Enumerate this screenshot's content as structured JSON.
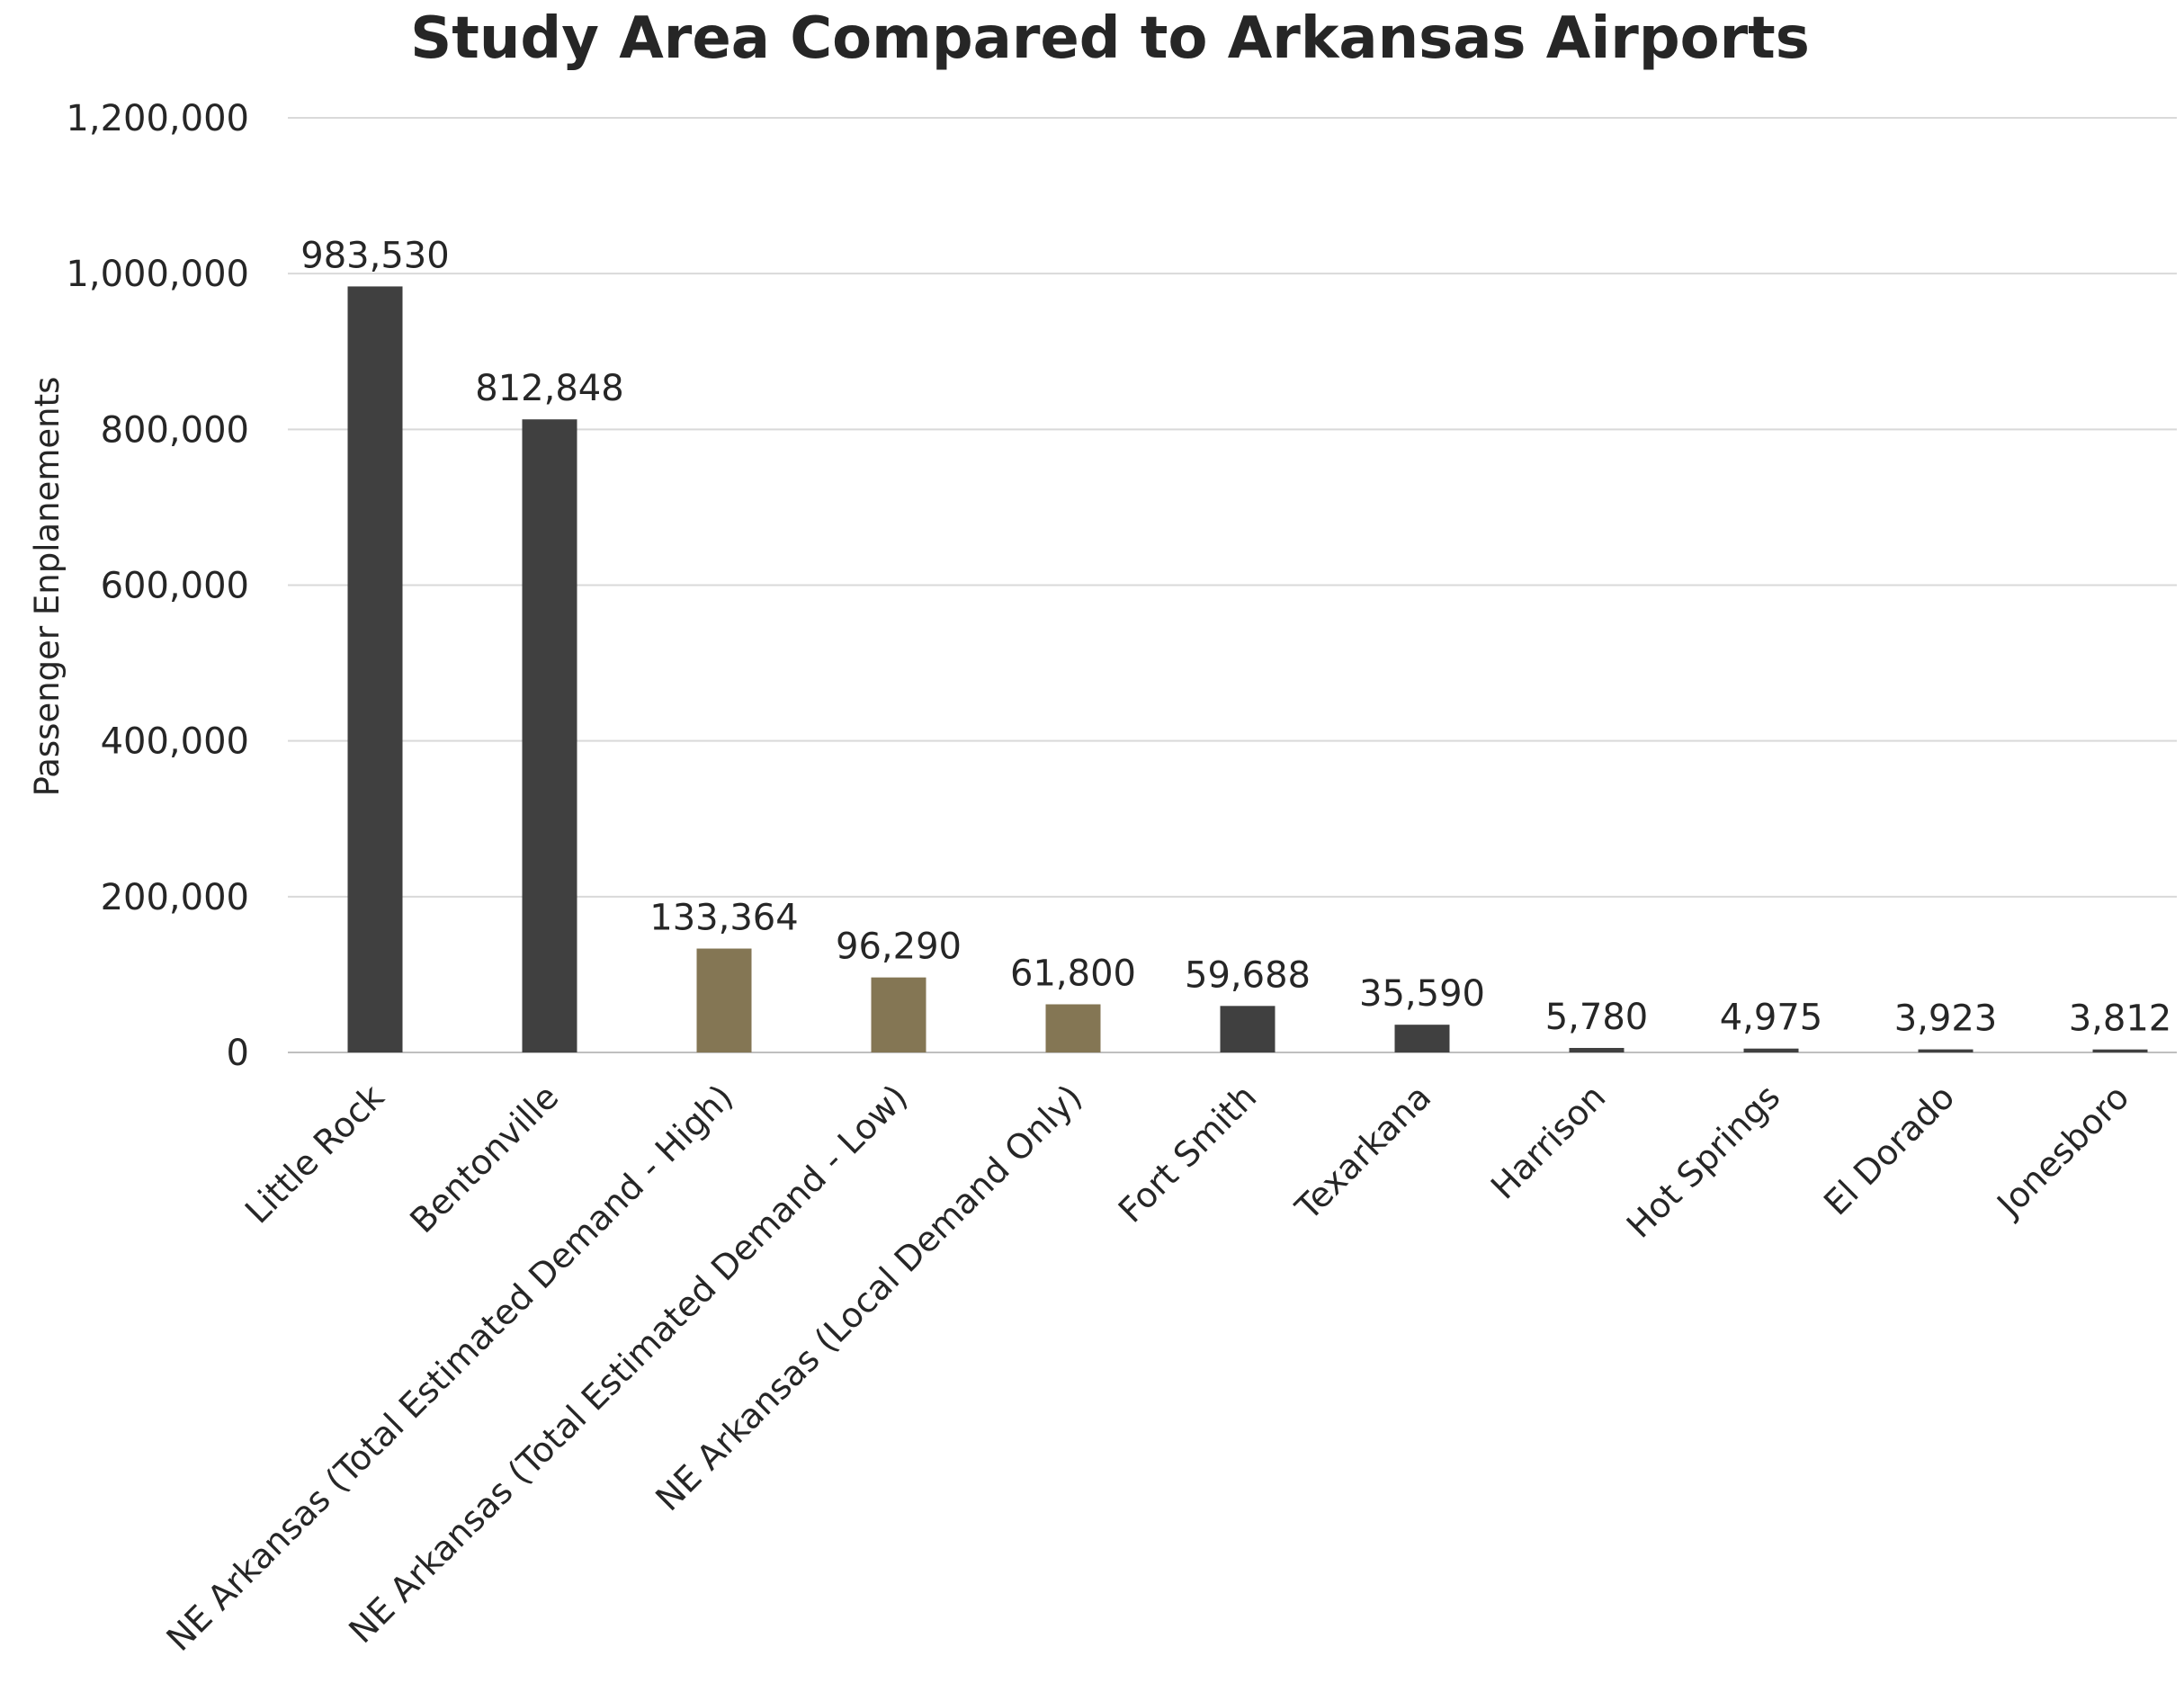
{
  "chart_data": {
    "type": "bar",
    "title": "Study Area Compared to Arkansas Airports",
    "xlabel": "",
    "ylabel": "Passenger Enplanements",
    "ylim": [
      0,
      1200000
    ],
    "yticks": [
      0,
      200000,
      400000,
      600000,
      800000,
      1000000,
      1200000
    ],
    "ytick_labels": [
      "0",
      "200,000",
      "400,000",
      "600,000",
      "800,000",
      "1,000,000",
      "1,200,000"
    ],
    "grid": true,
    "categories": [
      "Little Rock",
      "Bentonville",
      "NE Arkansas (Total Estimated Demand - High)",
      "NE Arkansas (Total Estimated Demand - Low)",
      "NE Arkansas (Local Demand Only)",
      "Fort Smith",
      "Texarkana",
      "Harrison",
      "Hot Springs",
      "El Dorado",
      "Jonesboro"
    ],
    "values": [
      983530,
      812848,
      133364,
      96290,
      61800,
      59688,
      35590,
      5780,
      4975,
      3923,
      3812
    ],
    "data_labels": [
      "983,530",
      "812,848",
      "133,364",
      "96,290",
      "61,800",
      "59,688",
      "35,590",
      "5,780",
      "4,975",
      "3,923",
      "3,812"
    ],
    "bar_colors": [
      "#404040",
      "#404040",
      "#847654",
      "#847654",
      "#847654",
      "#404040",
      "#404040",
      "#404040",
      "#404040",
      "#404040",
      "#404040"
    ]
  }
}
